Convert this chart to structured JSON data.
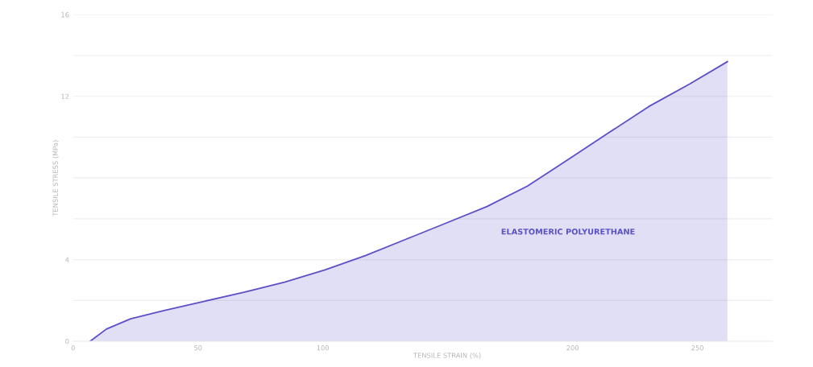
{
  "chart_data": {
    "type": "area",
    "xlabel": "TENSILE STRAIN (%)",
    "ylabel": "TENSILE STRESS (MPa)",
    "xlim": [
      0,
      280
    ],
    "xticks": [
      0,
      50,
      100,
      200,
      250
    ],
    "ylim": [
      0,
      16
    ],
    "yticks": [
      0,
      {
        "value": 2,
        "label": null
      },
      4,
      {
        "value": 6,
        "label": null
      },
      {
        "value": 8,
        "label": null
      },
      {
        "value": 10,
        "label": null
      },
      12,
      {
        "value": 14,
        "label": null
      },
      16
    ],
    "grid": "y",
    "legend": false,
    "series": [
      {
        "name": "ELASTOMERIC POLYURETHANE",
        "color": "#5b50c8",
        "x": [
          6.8,
          13.3,
          23,
          36,
          52.2,
          68.4,
          84.6,
          100.8,
          117,
          133.3,
          149.5,
          165.7,
          181.9,
          198.2,
          214.3,
          230.5,
          246.8,
          262
        ],
        "values": [
          0,
          0.6,
          1.1,
          1.5,
          1.95,
          2.4,
          2.9,
          3.5,
          4.2,
          5.0,
          5.8,
          6.6,
          7.6,
          8.9,
          10.2,
          11.5,
          12.6,
          13.7
        ]
      }
    ]
  }
}
